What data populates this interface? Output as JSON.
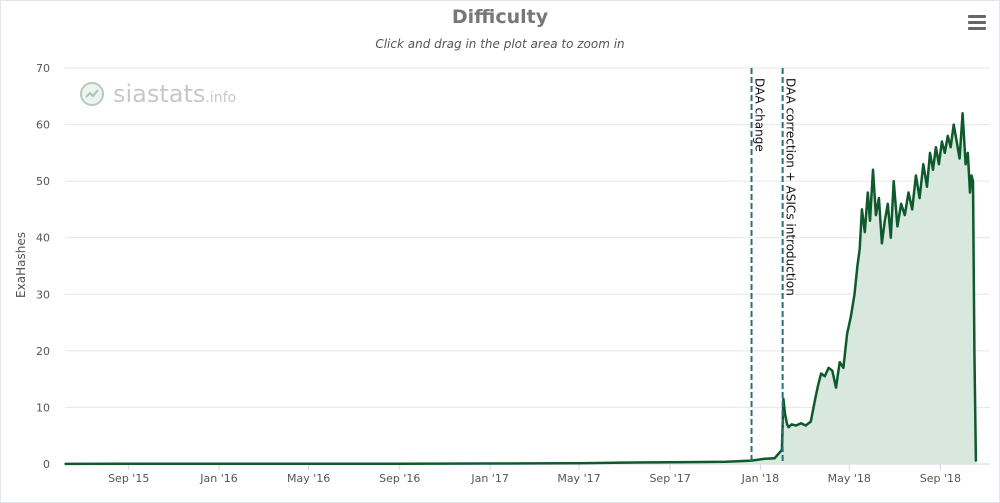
{
  "chart_data": {
    "type": "area",
    "title": "Difficulty",
    "subtitle": "Click and drag in the plot area to zoom in",
    "xlabel": "",
    "ylabel": "ExaHashes",
    "ylim": [
      0,
      70
    ],
    "xlim": [
      "2015-06-07",
      "2018-11-07"
    ],
    "grid": true,
    "legend": "none",
    "y_ticks": [
      0,
      10,
      20,
      30,
      40,
      50,
      60,
      70
    ],
    "x_ticks": [
      {
        "label": "Sep '15",
        "date": "2015-09-01"
      },
      {
        "label": "Jan '16",
        "date": "2016-01-01"
      },
      {
        "label": "May '16",
        "date": "2016-05-01"
      },
      {
        "label": "Sep '16",
        "date": "2016-09-01"
      },
      {
        "label": "Jan '17",
        "date": "2017-01-01"
      },
      {
        "label": "May '17",
        "date": "2017-05-01"
      },
      {
        "label": "Sep '17",
        "date": "2017-09-01"
      },
      {
        "label": "Jan '18",
        "date": "2018-01-01"
      },
      {
        "label": "May '18",
        "date": "2018-05-01"
      },
      {
        "label": "Sep '18",
        "date": "2018-09-01"
      }
    ],
    "plot_lines": [
      {
        "label": "DAA change",
        "date": "2017-12-20"
      },
      {
        "label": "DAA correction + ASICs introduction",
        "date": "2018-01-31"
      }
    ],
    "series": [
      {
        "name": "",
        "x": [
          "2015-06-07",
          "2015-09-01",
          "2016-01-01",
          "2016-05-01",
          "2016-09-01",
          "2017-01-01",
          "2017-03-01",
          "2017-05-01",
          "2017-07-01",
          "2017-09-01",
          "2017-10-15",
          "2017-11-15",
          "2017-12-01",
          "2017-12-20",
          "2018-01-05",
          "2018-01-20",
          "2018-01-30",
          "2018-02-01",
          "2018-02-03",
          "2018-02-06",
          "2018-02-08",
          "2018-02-12",
          "2018-02-18",
          "2018-02-25",
          "2018-03-03",
          "2018-03-10",
          "2018-03-16",
          "2018-03-20",
          "2018-03-24",
          "2018-03-29",
          "2018-04-03",
          "2018-04-08",
          "2018-04-13",
          "2018-04-18",
          "2018-04-23",
          "2018-04-28",
          "2018-05-03",
          "2018-05-08",
          "2018-05-12",
          "2018-05-15",
          "2018-05-18",
          "2018-05-22",
          "2018-05-26",
          "2018-05-29",
          "2018-06-02",
          "2018-06-06",
          "2018-06-10",
          "2018-06-14",
          "2018-06-18",
          "2018-06-22",
          "2018-06-26",
          "2018-06-30",
          "2018-07-05",
          "2018-07-10",
          "2018-07-15",
          "2018-07-20",
          "2018-07-25",
          "2018-07-30",
          "2018-08-04",
          "2018-08-09",
          "2018-08-14",
          "2018-08-18",
          "2018-08-22",
          "2018-08-26",
          "2018-08-30",
          "2018-09-03",
          "2018-09-07",
          "2018-09-11",
          "2018-09-15",
          "2018-09-19",
          "2018-09-23",
          "2018-09-27",
          "2018-10-01",
          "2018-10-05",
          "2018-10-08",
          "2018-10-11",
          "2018-10-13",
          "2018-10-15",
          "2018-10-17",
          "2018-10-19"
        ],
        "values": [
          0.02,
          0.03,
          0.04,
          0.05,
          0.06,
          0.08,
          0.1,
          0.15,
          0.25,
          0.3,
          0.35,
          0.4,
          0.5,
          0.6,
          0.9,
          1.0,
          2.5,
          11.5,
          9.0,
          7.0,
          6.5,
          7.0,
          6.8,
          7.2,
          6.8,
          7.5,
          11.5,
          14.0,
          16.0,
          15.5,
          17.0,
          16.5,
          13.5,
          18.0,
          17.0,
          23.0,
          26.0,
          30.0,
          35.0,
          38.0,
          45.0,
          41.0,
          48.0,
          43.0,
          52.0,
          44.0,
          47.0,
          39.0,
          43.0,
          46.0,
          40.0,
          50.0,
          42.0,
          46.0,
          44.0,
          48.0,
          45.0,
          51.0,
          47.0,
          53.0,
          49.0,
          55.0,
          52.0,
          56.0,
          53.0,
          57.0,
          55.0,
          58.0,
          56.0,
          60.0,
          57.0,
          54.0,
          62.0,
          53.0,
          55.0,
          48.0,
          51.0,
          50.0,
          20.0,
          0.5
        ]
      }
    ]
  }
}
